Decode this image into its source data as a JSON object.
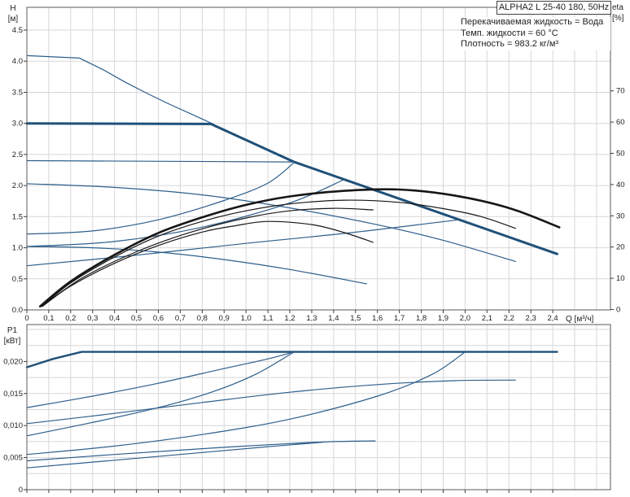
{
  "header": {
    "title": "ALPHA2 L 25-40 180, 50Hz",
    "info_lines": [
      "Перекачиваемая жидкость = Вода",
      "Темп. жидкости = 60 °C",
      "Плотность = 983.2 кг/м³"
    ]
  },
  "chart_data": {
    "type": "line",
    "grid": true,
    "legend": false,
    "colors": {
      "blue": "#2d5e8b",
      "blue_dark": "#1f5078",
      "black": "#161616"
    },
    "panels": [
      {
        "id": "head_flow",
        "x_axis": {
          "label": "Q [м³/ч]",
          "min": 0,
          "max": 2.66,
          "tick_labels": [
            "0",
            "0,1",
            "0,2",
            "0,3",
            "0,4",
            "0,5",
            "0,6",
            "0,7",
            "0,8",
            "0,9",
            "1,0",
            "1,1",
            "1,2",
            "1,3",
            "1,4",
            "1,5",
            "1,6",
            "1,7",
            "1,8",
            "1,9",
            "2,0",
            "2,1",
            "2,2",
            "2,3",
            "2,4"
          ]
        },
        "y_axis": {
          "label": "H",
          "unit": "[м]",
          "min": 0,
          "max": 4.87,
          "tick_labels": [
            "0.0",
            "0.5",
            "1.0",
            "1.5",
            "2.0",
            "2.5",
            "3.0",
            "3.5",
            "4.0",
            "4.5"
          ]
        },
        "y2_axis": {
          "label": "eta",
          "unit": "[%]",
          "min": 0,
          "max": 96,
          "tick_labels": [
            "0",
            "10",
            "20",
            "30",
            "40",
            "50",
            "60",
            "70"
          ]
        },
        "series": [
          {
            "name": "max-speed-curve",
            "axis": "y",
            "color": "blue",
            "width": 1.2,
            "smooth": false,
            "points": [
              [
                0,
                4.09
              ],
              [
                0.24,
                4.05
              ],
              [
                0.35,
                3.86
              ],
              [
                0.45,
                3.66
              ],
              [
                0.55,
                3.48
              ],
              [
                0.65,
                3.31
              ],
              [
                0.75,
                3.15
              ],
              [
                0.85,
                2.99
              ]
            ]
          },
          {
            "name": "selected-control-curve",
            "axis": "y",
            "color": "blue_dark",
            "width": 3,
            "smooth": false,
            "points": [
              [
                0,
                3.0
              ],
              [
                0.84,
                2.99
              ],
              [
                1.22,
                2.38
              ],
              [
                2.42,
                0.9
              ]
            ]
          },
          {
            "name": "constant-pressure-curve-2-4",
            "axis": "y",
            "color": "blue",
            "width": 1.2,
            "smooth": false,
            "points": [
              [
                0,
                2.4
              ],
              [
                1.22,
                2.38
              ]
            ]
          },
          {
            "name": "prop-pressure-curve-3",
            "axis": "y",
            "color": "blue",
            "width": 1.2,
            "smooth": true,
            "points": [
              [
                0,
                1.22
              ],
              [
                0.3,
                1.27
              ],
              [
                0.6,
                1.45
              ],
              [
                0.9,
                1.76
              ],
              [
                1.1,
                2.04
              ],
              [
                1.22,
                2.37
              ]
            ]
          },
          {
            "name": "prop-pressure-curve-2",
            "axis": "y",
            "color": "blue",
            "width": 1.2,
            "smooth": true,
            "points": [
              [
                0,
                1.02
              ],
              [
                0.4,
                1.1
              ],
              [
                0.8,
                1.33
              ],
              [
                1.2,
                1.72
              ],
              [
                1.45,
                2.1
              ]
            ]
          },
          {
            "name": "prop-pressure-curve-1",
            "axis": "y",
            "color": "blue",
            "width": 1.2,
            "smooth": true,
            "points": [
              [
                0,
                0.71
              ],
              [
                0.5,
                0.88
              ],
              [
                1.0,
                1.07
              ],
              [
                1.5,
                1.25
              ],
              [
                1.97,
                1.45
              ]
            ]
          },
          {
            "name": "speed-ii-curve",
            "axis": "y",
            "color": "blue",
            "width": 1.2,
            "smooth": true,
            "points": [
              [
                0,
                2.03
              ],
              [
                0.4,
                1.97
              ],
              [
                0.8,
                1.85
              ],
              [
                1.2,
                1.64
              ],
              [
                1.6,
                1.37
              ],
              [
                1.9,
                1.12
              ],
              [
                2.23,
                0.78
              ]
            ]
          },
          {
            "name": "speed-i-curve",
            "axis": "y",
            "color": "blue",
            "width": 1.2,
            "smooth": true,
            "points": [
              [
                0,
                1.02
              ],
              [
                0.3,
                1.0
              ],
              [
                0.6,
                0.93
              ],
              [
                0.9,
                0.81
              ],
              [
                1.2,
                0.65
              ],
              [
                1.55,
                0.42
              ]
            ]
          },
          {
            "name": "eta-curve-max",
            "axis": "y2",
            "color": "black",
            "width": 2.6,
            "smooth": true,
            "points": [
              [
                0.06,
                1
              ],
              [
                0.2,
                9
              ],
              [
                0.4,
                17.5
              ],
              [
                0.6,
                24.5
              ],
              [
                0.8,
                29.5
              ],
              [
                1.0,
                33.5
              ],
              [
                1.2,
                36.2
              ],
              [
                1.45,
                38
              ],
              [
                1.7,
                38.4
              ],
              [
                1.95,
                36.5
              ],
              [
                2.2,
                32.5
              ],
              [
                2.43,
                26.3
              ]
            ]
          },
          {
            "name": "eta-curve-2",
            "axis": "y2",
            "color": "black",
            "width": 1.2,
            "smooth": true,
            "points": [
              [
                0.07,
                1
              ],
              [
                0.2,
                8.5
              ],
              [
                0.4,
                16.8
              ],
              [
                0.6,
                23.5
              ],
              [
                0.8,
                28.2
              ],
              [
                1.0,
                31.6
              ],
              [
                1.2,
                33.8
              ],
              [
                1.45,
                35
              ],
              [
                1.7,
                34.3
              ],
              [
                1.9,
                32.3
              ],
              [
                2.07,
                29.8
              ],
              [
                2.23,
                26
              ]
            ]
          },
          {
            "name": "eta-curve-3",
            "axis": "y2",
            "color": "black",
            "width": 1.2,
            "smooth": true,
            "points": [
              [
                0.07,
                1
              ],
              [
                0.25,
                10
              ],
              [
                0.5,
                18.5
              ],
              [
                0.75,
                24.8
              ],
              [
                1.0,
                29.3
              ],
              [
                1.2,
                31.6
              ],
              [
                1.4,
                32.4
              ],
              [
                1.58,
                31.9
              ]
            ]
          },
          {
            "name": "eta-curve-speed-i",
            "axis": "y2",
            "color": "black",
            "width": 1.2,
            "smooth": true,
            "points": [
              [
                0.07,
                1
              ],
              [
                0.2,
                7.5
              ],
              [
                0.4,
                14.8
              ],
              [
                0.6,
                20.5
              ],
              [
                0.8,
                24.8
              ],
              [
                0.95,
                26.8
              ],
              [
                1.1,
                28.2
              ],
              [
                1.3,
                27.2
              ],
              [
                1.45,
                24.6
              ],
              [
                1.58,
                21.5
              ]
            ]
          }
        ]
      },
      {
        "id": "power",
        "y_axis": {
          "label": "P1",
          "unit": "[кВт]",
          "min": 0,
          "max": 0.0258,
          "tick_labels": [
            "0",
            "0,005",
            "0,010",
            "0,015",
            "0,020"
          ]
        },
        "series": [
          {
            "name": "p1-max-curve",
            "axis": "y",
            "color": "blue_dark",
            "width": 2.4,
            "smooth": false,
            "points": [
              [
                0,
                0.0191
              ],
              [
                0.12,
                0.0204
              ],
              [
                0.25,
                0.0215
              ],
              [
                2.42,
                0.0215
              ]
            ]
          },
          {
            "name": "p1-curve-a",
            "axis": "y",
            "color": "blue",
            "width": 1.2,
            "smooth": true,
            "points": [
              [
                0,
                0.0128
              ],
              [
                0.3,
                0.0146
              ],
              [
                0.6,
                0.0166
              ],
              [
                0.9,
                0.0189
              ],
              [
                1.1,
                0.0204
              ],
              [
                1.22,
                0.0215
              ]
            ]
          },
          {
            "name": "p1-curve-b",
            "axis": "y",
            "color": "blue",
            "width": 1.2,
            "smooth": true,
            "points": [
              [
                0,
                0.0084
              ],
              [
                0.3,
                0.0105
              ],
              [
                0.6,
                0.0128
              ],
              [
                0.85,
                0.0153
              ],
              [
                1.05,
                0.0181
              ],
              [
                1.22,
                0.0215
              ]
            ]
          },
          {
            "name": "p1-speed-ii-curve",
            "axis": "y",
            "color": "blue",
            "width": 1.2,
            "smooth": true,
            "points": [
              [
                0,
                0.0103
              ],
              [
                0.4,
                0.0119
              ],
              [
                0.8,
                0.0136
              ],
              [
                1.2,
                0.0152
              ],
              [
                1.6,
                0.0164
              ],
              [
                1.95,
                0.017
              ],
              [
                2.23,
                0.0171
              ]
            ]
          },
          {
            "name": "p1-curve-c",
            "axis": "y",
            "color": "blue",
            "width": 1.2,
            "smooth": true,
            "points": [
              [
                0,
                0.0055
              ],
              [
                0.4,
                0.0068
              ],
              [
                0.8,
                0.0086
              ],
              [
                1.2,
                0.011
              ],
              [
                1.6,
                0.0146
              ],
              [
                1.85,
                0.018
              ],
              [
                2.0,
                0.0215
              ]
            ]
          },
          {
            "name": "p1-speed-i-curve",
            "axis": "y",
            "color": "blue",
            "width": 1.2,
            "smooth": true,
            "points": [
              [
                0,
                0.0045
              ],
              [
                0.4,
                0.0055
              ],
              [
                0.8,
                0.0064
              ],
              [
                1.2,
                0.0072
              ],
              [
                1.4,
                0.0075
              ],
              [
                1.59,
                0.0076
              ]
            ]
          },
          {
            "name": "p1-curve-d",
            "axis": "y",
            "color": "blue",
            "width": 1.2,
            "smooth": true,
            "points": [
              [
                0,
                0.0034
              ],
              [
                0.4,
                0.0046
              ],
              [
                0.8,
                0.0058
              ],
              [
                1.1,
                0.0067
              ],
              [
                1.35,
                0.0074
              ]
            ]
          }
        ]
      }
    ]
  }
}
